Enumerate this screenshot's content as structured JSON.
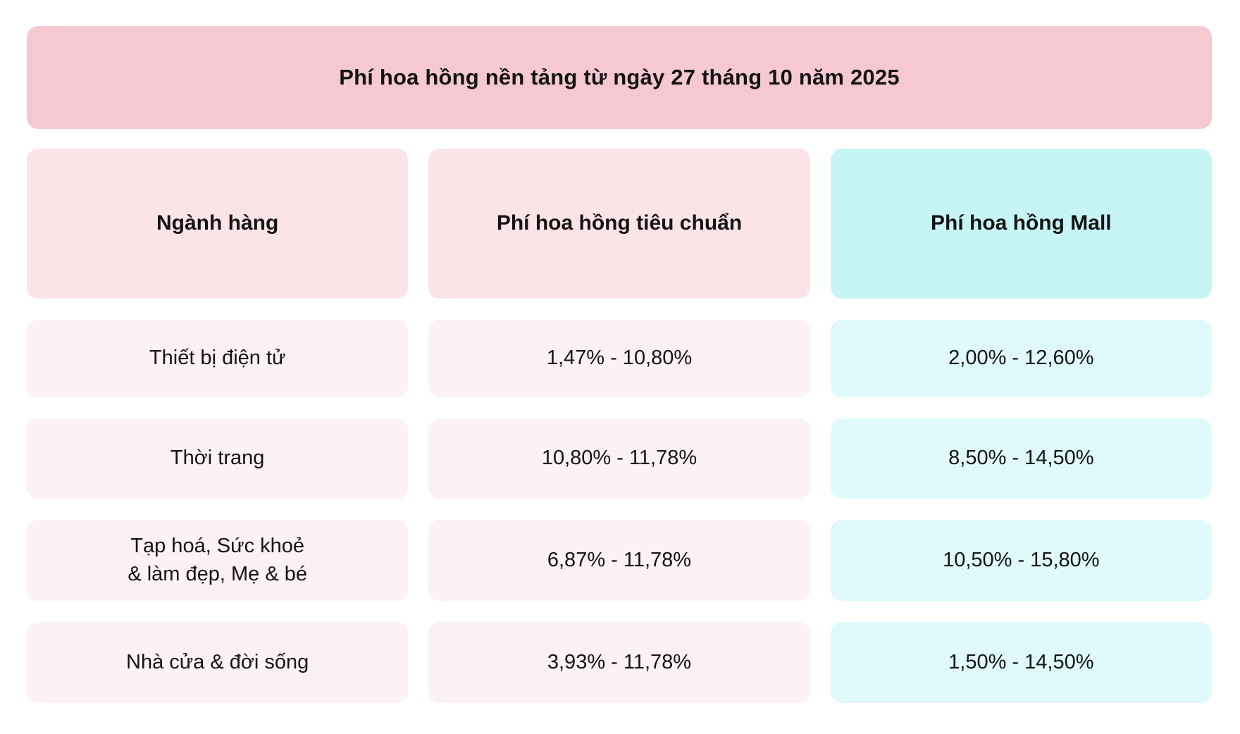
{
  "banner": {
    "title": "Phí hoa hồng nền tảng từ ngày 27 tháng 10 năm 2025"
  },
  "table": {
    "headers": [
      "Ngành hàng",
      "Phí hoa hồng tiêu chuẩn",
      "Phí hoa hồng Mall"
    ],
    "rows": [
      {
        "category": "Thiết bị điện tử",
        "standard": "1,47% - 10,80%",
        "mall": "2,00% - 12,60%"
      },
      {
        "category": "Thời trang",
        "standard": "10,80% - 11,78%",
        "mall": "8,50% - 14,50%"
      },
      {
        "category": "Tạp hoá, Sức khoẻ\n& làm đẹp, Mẹ & bé",
        "standard": "6,87% - 11,78%",
        "mall": "10,50% - 15,80%"
      },
      {
        "category": "Nhà cửa & đời sống",
        "standard": "3,93% - 11,78%",
        "mall": "1,50% - 14,50%"
      }
    ]
  },
  "chart_data": {
    "type": "table",
    "title": "Phí hoa hồng nền tảng từ ngày 27 tháng 10 năm 2025",
    "columns": [
      "Ngành hàng",
      "Phí hoa hồng tiêu chuẩn",
      "Phí hoa hồng Mall"
    ],
    "rows": [
      [
        "Thiết bị điện tử",
        "1,47% - 10,80%",
        "2,00% - 12,60%"
      ],
      [
        "Thời trang",
        "10,80% - 11,78%",
        "8,50% - 14,50%"
      ],
      [
        "Tạp hoá, Sức khoẻ & làm đẹp, Mẹ & bé",
        "6,87% - 11,78%",
        "10,50% - 15,80%"
      ],
      [
        "Nhà cửa & đời sống",
        "3,93% - 11,78%",
        "1,50% - 14,50%"
      ]
    ],
    "legend_position": "none",
    "grid": false
  },
  "colors": {
    "banner_bg": "#F6C9D2",
    "header_pink_bg": "#FBE4E8",
    "header_cyan_bg": "#C7F5F6",
    "cell_pink_bg": "#FCF1F3",
    "cell_cyan_bg": "#E0FAFB",
    "text": "#141414"
  }
}
